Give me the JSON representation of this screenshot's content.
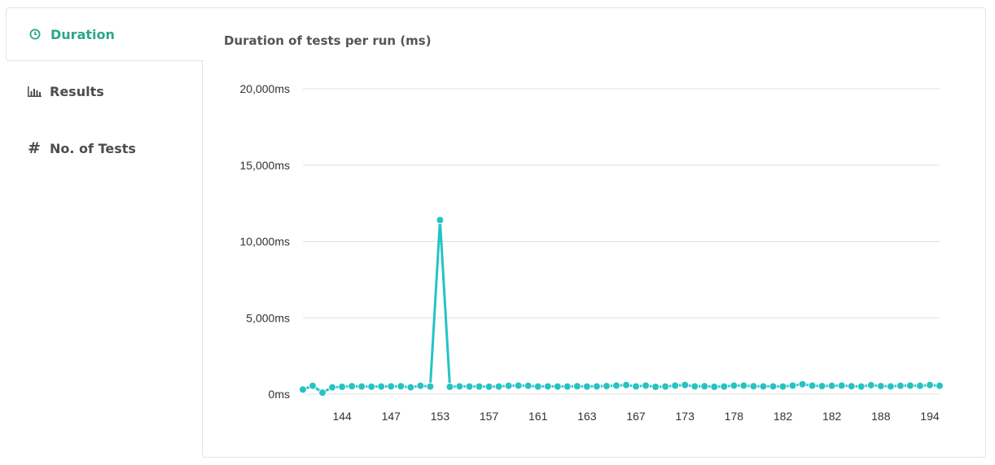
{
  "tabs": [
    {
      "label": "Duration",
      "icon": "clock-icon",
      "active": true
    },
    {
      "label": "Results",
      "icon": "bar-chart-icon",
      "active": false
    },
    {
      "label": "No. of Tests",
      "icon": "hash-icon",
      "active": false
    }
  ],
  "colors": {
    "accent": "#2ca58d",
    "series": "#26c3c3",
    "grid": "#e0e0e0",
    "border": "#e3e3e3"
  },
  "chart_data": {
    "type": "line",
    "title": "Duration of tests per run (ms)",
    "xlabel": "",
    "ylabel": "",
    "ylim": [
      0,
      20000
    ],
    "yticks": [
      "0ms",
      "5,000ms",
      "10,000ms",
      "15,000ms",
      "20,000ms"
    ],
    "ytick_values": [
      0,
      5000,
      10000,
      15000,
      20000
    ],
    "x_tick_labels": [
      "144",
      "147",
      "153",
      "157",
      "161",
      "163",
      "167",
      "173",
      "178",
      "182",
      "182",
      "188",
      "194"
    ],
    "x_tick_indices": [
      4,
      9,
      14,
      19,
      24,
      29,
      34,
      39,
      44,
      49,
      54,
      59,
      64
    ],
    "grid": true,
    "legend": "none",
    "series": [
      {
        "values": [
          300,
          550,
          100,
          450,
          480,
          520,
          500,
          490,
          500,
          510,
          520,
          450,
          550,
          500,
          11400,
          480,
          510,
          500,
          500,
          490,
          500,
          550,
          560,
          550,
          500,
          510,
          500,
          500,
          520,
          500,
          510,
          530,
          560,
          600,
          510,
          560,
          480,
          500,
          560,
          600,
          510,
          520,
          480,
          500,
          560,
          560,
          520,
          510,
          510,
          500,
          560,
          650,
          560,
          530,
          550,
          560,
          520,
          500,
          590,
          530,
          510,
          550,
          560,
          550,
          600,
          550
        ]
      }
    ]
  }
}
